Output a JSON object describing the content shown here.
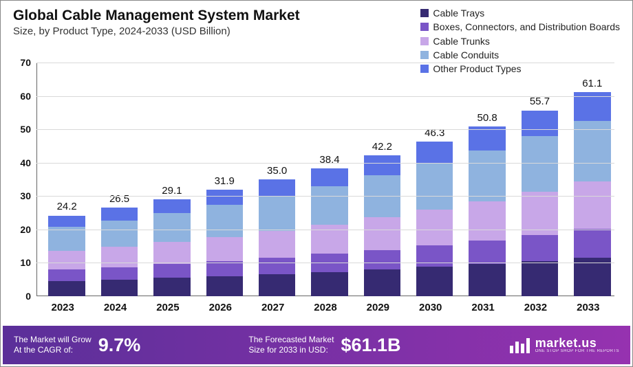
{
  "header": {
    "title": "Global Cable Management System Market",
    "subtitle": "Size, by Product Type, 2024-2033 (USD Billion)"
  },
  "legend": {
    "items": [
      {
        "label": "Cable Trays",
        "color": "#362a72"
      },
      {
        "label": "Boxes, Connectors, and Distribution Boards",
        "color": "#7a55c7"
      },
      {
        "label": "Cable Trunks",
        "color": "#c8a7e8"
      },
      {
        "label": "Cable Conduits",
        "color": "#8fb3df"
      },
      {
        "label": "Other Product Types",
        "color": "#5a72e6"
      }
    ]
  },
  "chart": {
    "type": "stacked-bar",
    "background_color": "#ffffff",
    "grid_color": "#d9d9d9",
    "axis_color": "#666666",
    "label_color": "#111111",
    "xlabel_fontsize": 15,
    "ylabel_fontsize": 14,
    "total_label_fontsize": 15,
    "ylim": [
      0,
      70
    ],
    "ytick_step": 10,
    "bar_width_ratio": 0.7,
    "categories": [
      "2023",
      "2024",
      "2025",
      "2026",
      "2027",
      "2028",
      "2029",
      "2030",
      "2031",
      "2032",
      "2033"
    ],
    "series_colors": [
      "#362a72",
      "#7a55c7",
      "#c8a7e8",
      "#8fb3df",
      "#5a72e6"
    ],
    "totals": [
      24.2,
      26.5,
      29.1,
      31.9,
      35.0,
      38.4,
      42.2,
      46.3,
      50.8,
      55.7,
      61.1
    ],
    "stacks": [
      [
        4.6,
        3.4,
        5.6,
        7.2,
        3.4
      ],
      [
        5.0,
        3.7,
        6.1,
        7.9,
        3.8
      ],
      [
        5.5,
        4.1,
        6.7,
        8.7,
        4.1
      ],
      [
        6.0,
        4.5,
        7.3,
        9.6,
        4.5
      ],
      [
        6.6,
        4.9,
        8.1,
        10.5,
        4.9
      ],
      [
        7.3,
        5.4,
        8.8,
        11.5,
        5.4
      ],
      [
        8.0,
        5.9,
        9.7,
        12.6,
        6.0
      ],
      [
        8.8,
        6.5,
        10.6,
        13.9,
        6.5
      ],
      [
        9.6,
        7.1,
        11.7,
        15.2,
        7.2
      ],
      [
        10.6,
        7.8,
        12.8,
        16.7,
        7.8
      ],
      [
        11.6,
        8.6,
        14.1,
        18.3,
        8.5
      ]
    ]
  },
  "footer": {
    "cagr_label": "The Market will Grow\nAt the CAGR of:",
    "cagr_value": "9.7%",
    "forecast_label": "The Forecasted Market\nSize for 2033 in USD:",
    "forecast_value": "$61.1B",
    "brand_name": "market.us",
    "brand_tagline": "ONE STOP SHOP FOR THE REPORTS",
    "bg_gradient_from": "#5a2f99",
    "bg_gradient_to": "#9632b0",
    "text_color": "#ffffff"
  }
}
